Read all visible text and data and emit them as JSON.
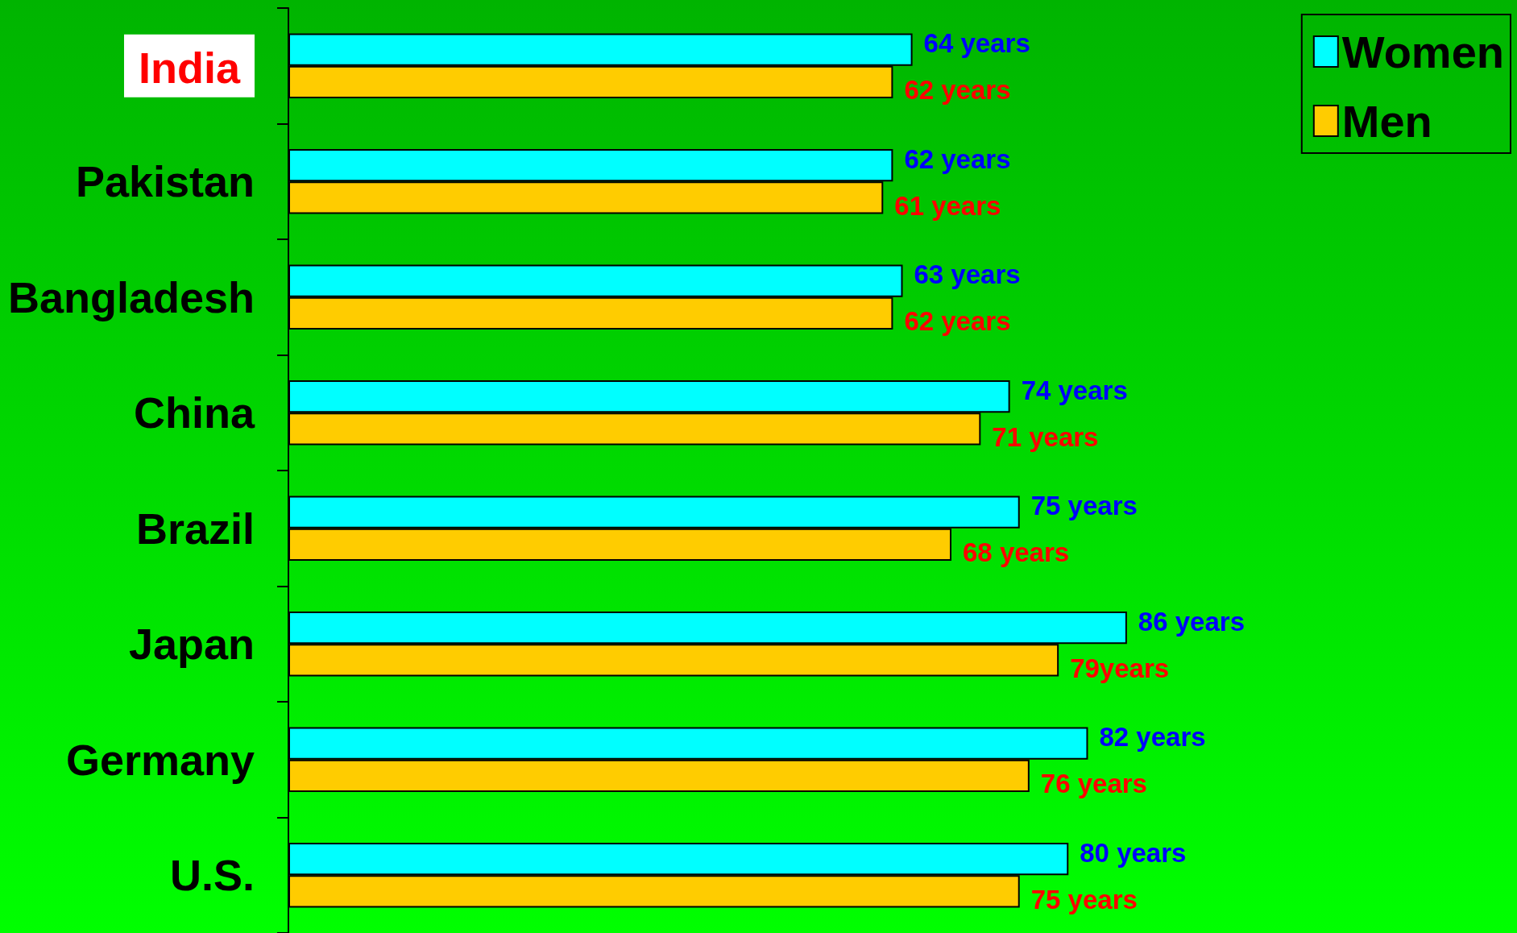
{
  "chart_data": {
    "type": "bar",
    "orientation": "horizontal",
    "categories": [
      "India",
      "Pakistan",
      "Bangladesh",
      "China",
      "Brazil",
      "Japan",
      "Germany",
      "U.S."
    ],
    "series": [
      {
        "name": "Women",
        "color": "#00ffff",
        "values": [
          64,
          62,
          63,
          74,
          75,
          86,
          82,
          80
        ],
        "value_labels": [
          "64 years",
          "62 years",
          "63 years",
          "74 years",
          "75 years",
          "86 years",
          "82 years",
          "80 years"
        ]
      },
      {
        "name": "Men",
        "color": "#ffcc00",
        "values": [
          62,
          61,
          62,
          71,
          68,
          79,
          76,
          75
        ],
        "value_labels": [
          "62 years",
          "61 years",
          "62 years",
          "71 years",
          "68 years",
          "79years",
          "76 years",
          "75 years"
        ]
      }
    ],
    "xlim": [
      0,
      126
    ],
    "tick_labels": "y",
    "legend": "top right"
  }
}
